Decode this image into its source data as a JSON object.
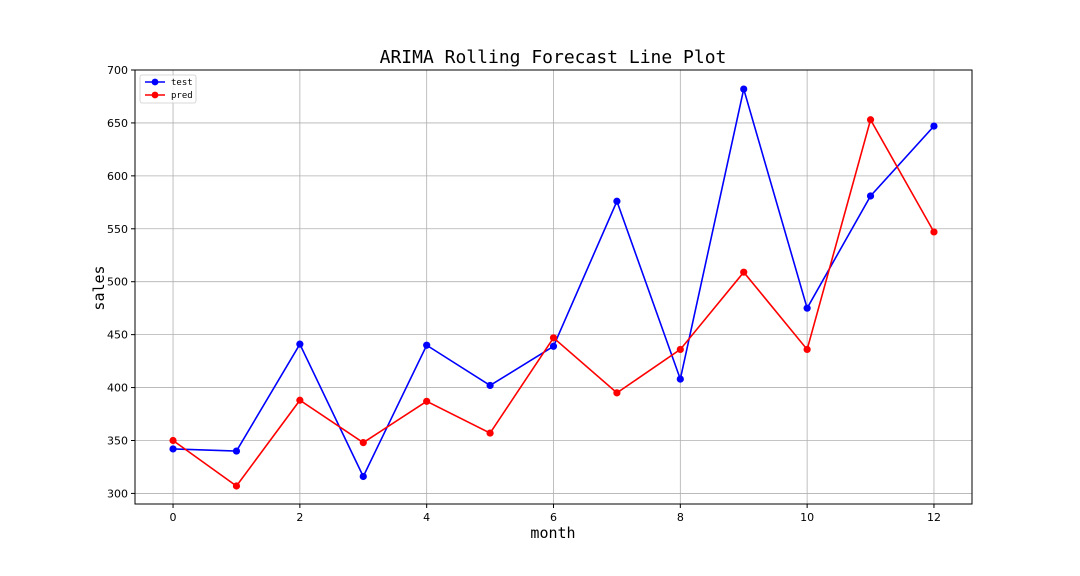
{
  "chart_data": {
    "type": "line",
    "title": "ARIMA Rolling Forecast Line Plot",
    "xlabel": "month",
    "ylabel": "sales",
    "x": [
      0,
      1,
      2,
      3,
      4,
      5,
      6,
      7,
      8,
      9,
      10,
      11,
      12
    ],
    "xlim": [
      -0.6,
      12.6
    ],
    "ylim": [
      290,
      700
    ],
    "xticks": [
      "0",
      "2",
      "4",
      "6",
      "8",
      "10",
      "12"
    ],
    "yticks": [
      "300",
      "350",
      "400",
      "450",
      "500",
      "550",
      "600",
      "650",
      "700"
    ],
    "grid": true,
    "legend_position": "top-left",
    "series": [
      {
        "name": "test",
        "color": "#0000ff",
        "marker": "circle",
        "values": [
          342,
          340,
          441,
          316,
          440,
          402,
          439,
          576,
          408,
          682,
          475,
          581,
          647
        ]
      },
      {
        "name": "pred",
        "color": "#ff0000",
        "marker": "circle",
        "values": [
          350,
          307,
          388,
          348,
          387,
          357,
          447,
          395,
          436,
          509,
          436,
          653,
          547
        ]
      }
    ]
  }
}
